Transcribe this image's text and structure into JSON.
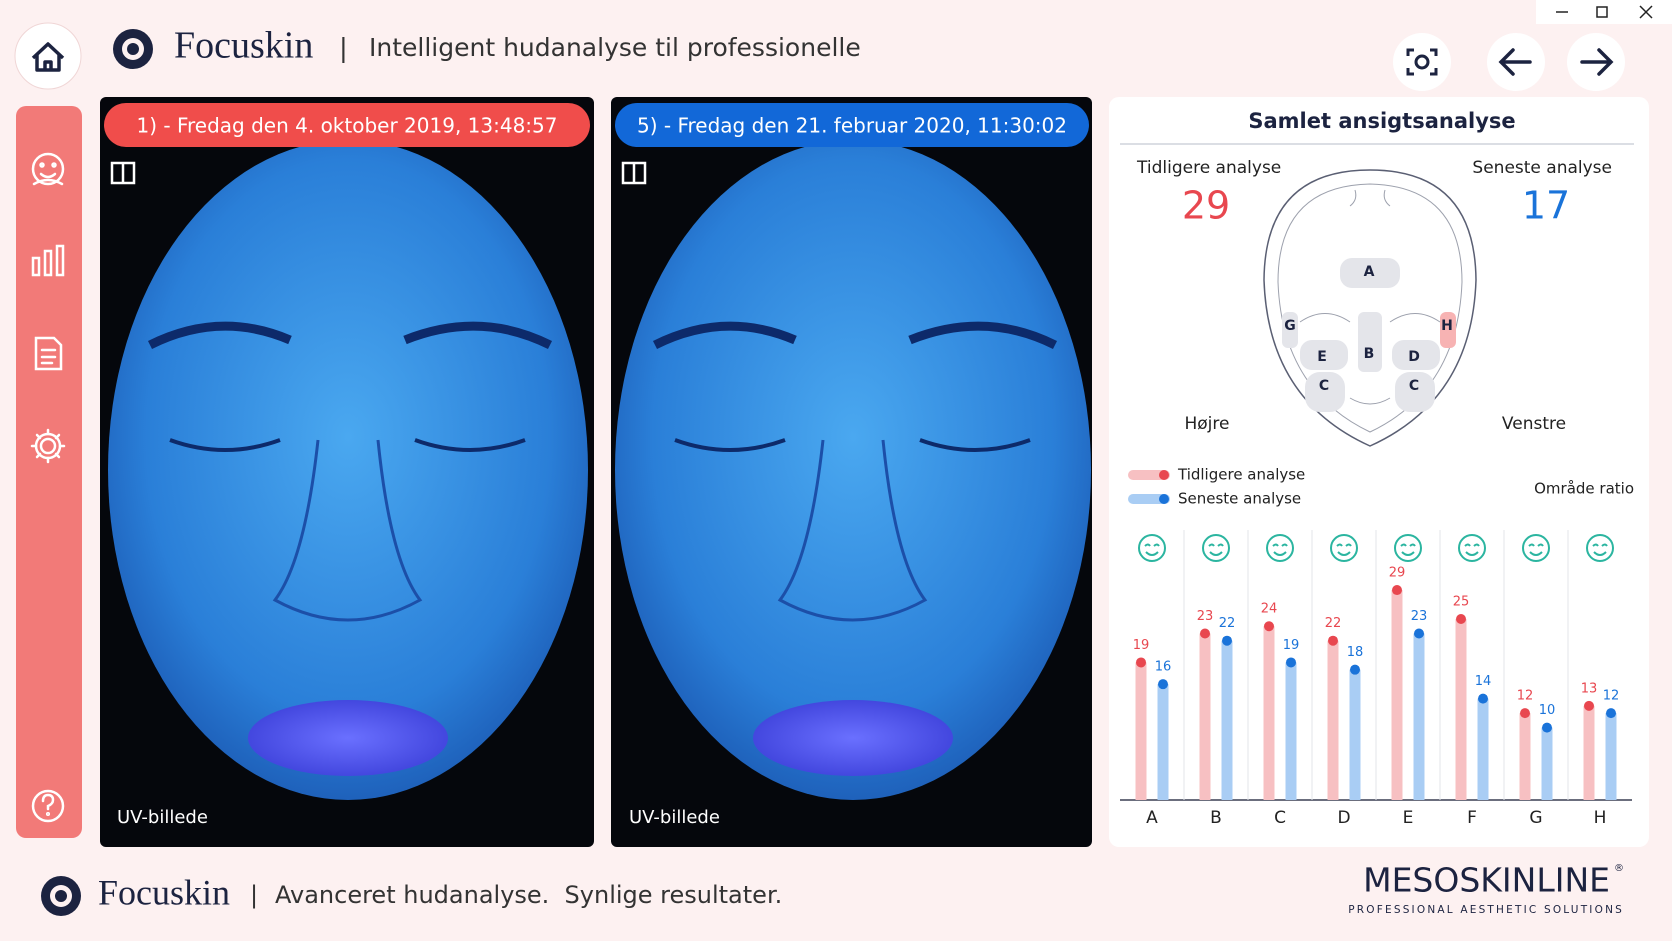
{
  "header": {
    "brand": "Focuskin",
    "separator": "|",
    "tagline": "Intelligent hudanalyse til professionelle"
  },
  "photos": [
    {
      "caption": "1) - Fredag den 4. oktober 2019, 13:48:57",
      "label": "UV-billede"
    },
    {
      "caption": "5) - Fredag den 21. februar 2020, 11:30:02",
      "label": "UV-billede"
    }
  ],
  "panel": {
    "title": "Samlet ansigtsanalyse",
    "previous": {
      "label": "Tidligere analyse",
      "score": 29
    },
    "latest": {
      "label": "Seneste analyse",
      "score": 17
    },
    "face_regions": [
      "A",
      "G",
      "H",
      "E",
      "B",
      "D",
      "C",
      "C"
    ],
    "right_side": "Højre",
    "left_side": "Venstre",
    "ratio_label": "Område ratio"
  },
  "chart_data": {
    "type": "bar",
    "categories": [
      "A",
      "B",
      "C",
      "D",
      "E",
      "F",
      "G",
      "H"
    ],
    "series": [
      {
        "name": "Tidligere analyse",
        "color": "#e8474f",
        "values": [
          19,
          23,
          24,
          22,
          29,
          25,
          12,
          13
        ]
      },
      {
        "name": "Seneste analyse",
        "color": "#1a73d9",
        "values": [
          16,
          22,
          19,
          18,
          23,
          14,
          10,
          12
        ]
      }
    ]
  },
  "footer": {
    "brand": "Focuskin",
    "separator": "|",
    "tagline": "Avanceret hudanalyse.  Synlige resultater.",
    "partner": "MESOSKINLINE",
    "partner_mark": "®",
    "partner_subtitle": "PROFESSIONAL AESTHETIC SOLUTIONS"
  }
}
